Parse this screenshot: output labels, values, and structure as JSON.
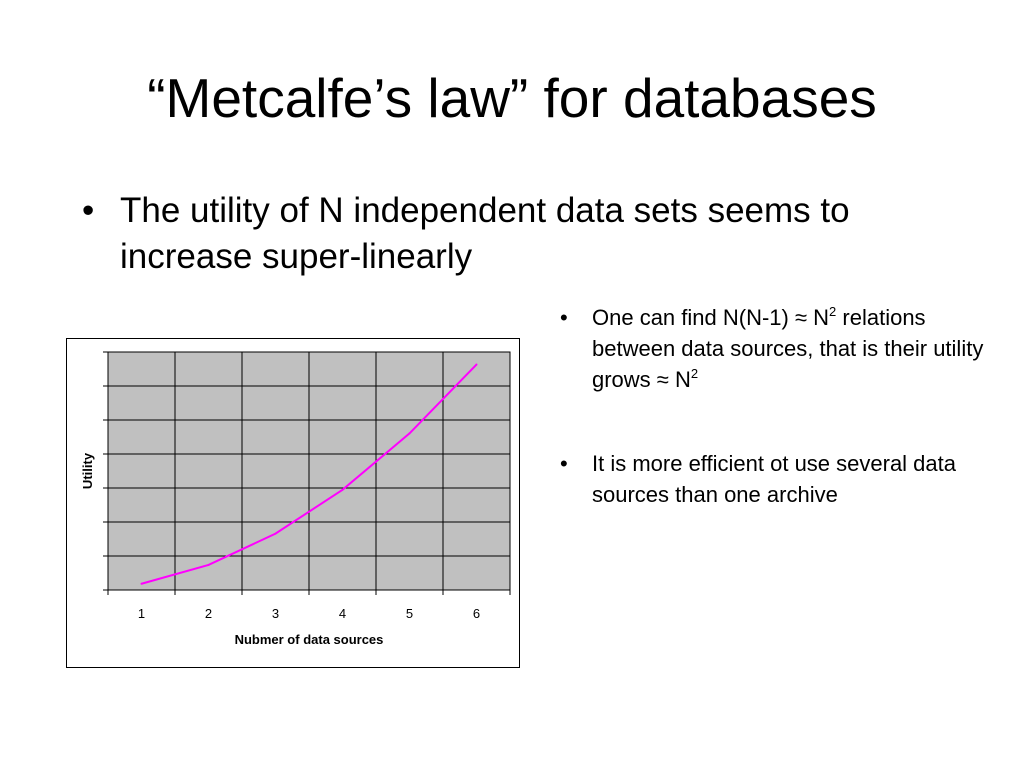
{
  "slide": {
    "title": "“Metcalfe’s law” for databases",
    "bullet": "The utility of N independent data sets seems to increase super-linearly",
    "sub_bullets": [
      {
        "before": "One can find N(N-1) ≈ N",
        "sup": "2",
        "middle": " relations between data sources, that is their utility grows ≈ N",
        "sup2": "2"
      },
      {
        "text": "It is more efficient ot use several data sources than one archive"
      }
    ],
    "bullet_char": "•"
  },
  "chart_data": {
    "type": "line",
    "categories": [
      "1",
      "2",
      "3",
      "4",
      "5",
      "6"
    ],
    "series": [
      {
        "values": [
          1,
          4,
          9,
          16,
          25,
          36
        ],
        "color": "#ff00ff"
      }
    ],
    "ylim": [
      0,
      38
    ],
    "xlabel": "Nubmer of data sources",
    "ylabel": "Utility",
    "grid": true,
    "plot_background": "#c0c0c0"
  }
}
